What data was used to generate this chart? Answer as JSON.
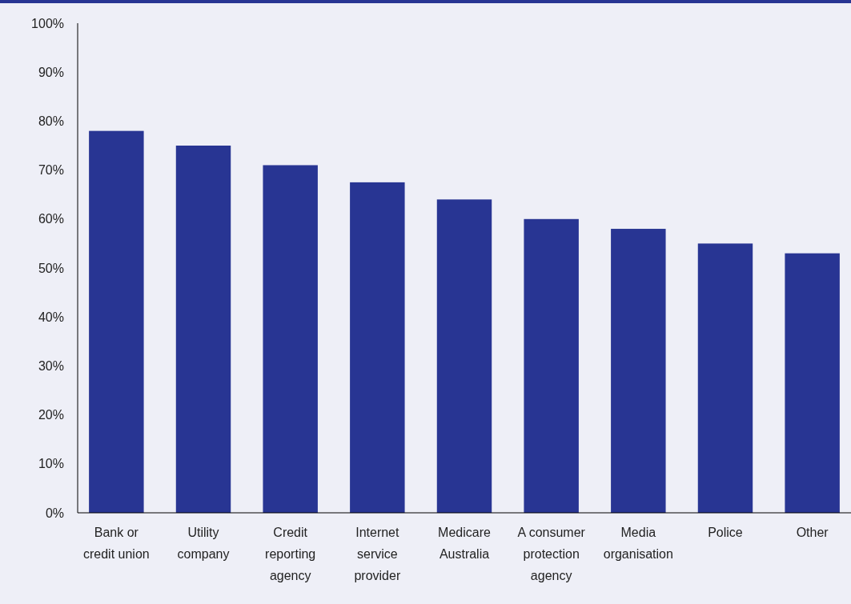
{
  "chart_data": {
    "type": "bar",
    "categories": [
      "Bank or credit union",
      "Utility company",
      "Credit reporting agency",
      "Internet service provider",
      "Medicare Australia",
      "A consumer protection agency",
      "Media organisation",
      "Police",
      "Other"
    ],
    "values": [
      78,
      75,
      71,
      67.5,
      64,
      60,
      58,
      55,
      53
    ],
    "color": "#283593",
    "ylim": [
      0,
      100
    ],
    "yticks": [
      {
        "value": 0,
        "label": "0%"
      },
      {
        "value": 10,
        "label": "10%"
      },
      {
        "value": 20,
        "label": "20%"
      },
      {
        "value": 30,
        "label": "30%"
      },
      {
        "value": 40,
        "label": "40%"
      },
      {
        "value": 50,
        "label": "50%"
      },
      {
        "value": 60,
        "label": "60%"
      },
      {
        "value": 70,
        "label": "70%"
      },
      {
        "value": 80,
        "label": "80%"
      },
      {
        "value": 90,
        "label": "90%"
      },
      {
        "value": 100,
        "label": "100%"
      }
    ],
    "grid": false
  }
}
